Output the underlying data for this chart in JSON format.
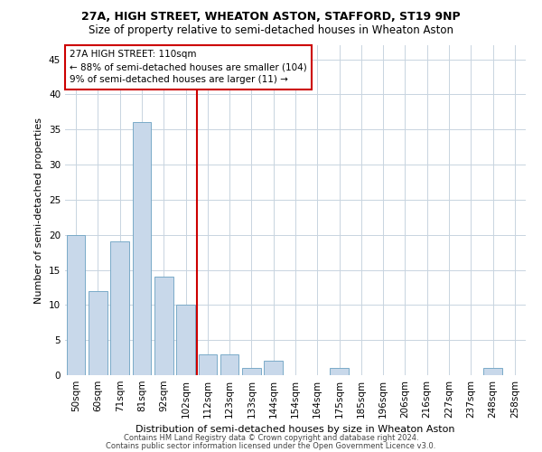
{
  "title1": "27A, HIGH STREET, WHEATON ASTON, STAFFORD, ST19 9NP",
  "title2": "Size of property relative to semi-detached houses in Wheaton Aston",
  "xlabel": "Distribution of semi-detached houses by size in Wheaton Aston",
  "ylabel": "Number of semi-detached properties",
  "categories": [
    "50sqm",
    "60sqm",
    "71sqm",
    "81sqm",
    "92sqm",
    "102sqm",
    "112sqm",
    "123sqm",
    "133sqm",
    "144sqm",
    "154sqm",
    "164sqm",
    "175sqm",
    "185sqm",
    "196sqm",
    "206sqm",
    "216sqm",
    "227sqm",
    "237sqm",
    "248sqm",
    "258sqm"
  ],
  "values": [
    20,
    12,
    19,
    36,
    14,
    10,
    3,
    3,
    1,
    2,
    0,
    0,
    1,
    0,
    0,
    0,
    0,
    0,
    0,
    1,
    0
  ],
  "bar_color": "#c8d8ea",
  "bar_edge_color": "#7aaac8",
  "highlight_line_index": 6,
  "annotation_title": "27A HIGH STREET: 110sqm",
  "annotation_line1": "← 88% of semi-detached houses are smaller (104)",
  "annotation_line2": "9% of semi-detached houses are larger (11) →",
  "annotation_box_color": "#cc0000",
  "ylim": [
    0,
    47
  ],
  "yticks": [
    0,
    5,
    10,
    15,
    20,
    25,
    30,
    35,
    40,
    45
  ],
  "footnote1": "Contains HM Land Registry data © Crown copyright and database right 2024.",
  "footnote2": "Contains public sector information licensed under the Open Government Licence v3.0.",
  "background_color": "#ffffff",
  "grid_color": "#c8d4e0",
  "title1_fontsize": 9,
  "title2_fontsize": 8.5,
  "xlabel_fontsize": 8,
  "ylabel_fontsize": 8,
  "tick_fontsize": 7.5,
  "annot_fontsize": 7.5,
  "footnote_fontsize": 6
}
